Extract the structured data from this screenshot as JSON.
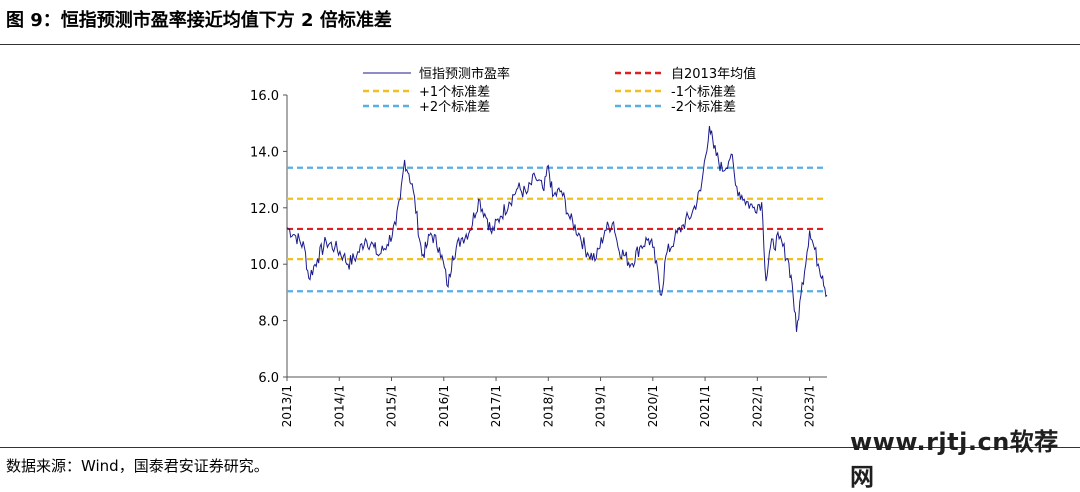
{
  "figure": {
    "title": "图 9：恒指预测市盈率接近均值下方 2 倍标准差",
    "source": "数据来源：Wind，国泰君安证券研究。",
    "watermark": "www.rjtj.cn软荐网"
  },
  "chart_data": {
    "type": "line",
    "title": "",
    "xlabel": "",
    "ylabel": "",
    "ylim": [
      6.0,
      16.0
    ],
    "yticks": [
      "6.0",
      "8.0",
      "10.0",
      "12.0",
      "14.0",
      "16.0"
    ],
    "xticks": [
      "2013/1",
      "2014/1",
      "2015/1",
      "2016/1",
      "2017/1",
      "2018/1",
      "2019/1",
      "2020/1",
      "2021/1",
      "2022/1",
      "2023/1"
    ],
    "xrange": [
      "2013/1",
      "2023/5"
    ],
    "grid": false,
    "legend_position": "top",
    "series": [
      {
        "name": "恒指预测市盈率",
        "color": "#1a1a8c",
        "style": "solid",
        "points": [
          [
            "2013/1",
            11.3
          ],
          [
            "2013/3",
            11.0
          ],
          [
            "2013/5",
            10.6
          ],
          [
            "2013/6",
            9.5
          ],
          [
            "2013/8",
            10.2
          ],
          [
            "2013/10",
            10.8
          ],
          [
            "2013/12",
            10.6
          ],
          [
            "2014/2",
            10.3
          ],
          [
            "2014/3",
            10.0
          ],
          [
            "2014/5",
            10.3
          ],
          [
            "2014/7",
            10.9
          ],
          [
            "2014/9",
            10.6
          ],
          [
            "2014/10",
            10.3
          ],
          [
            "2014/12",
            10.7
          ],
          [
            "2015/2",
            11.4
          ],
          [
            "2015/3",
            12.3
          ],
          [
            "2015/4",
            13.7
          ],
          [
            "2015/5",
            13.2
          ],
          [
            "2015/6",
            12.6
          ],
          [
            "2015/8",
            10.3
          ],
          [
            "2015/9",
            10.6
          ],
          [
            "2015/10",
            11.1
          ],
          [
            "2015/12",
            10.6
          ],
          [
            "2016/2",
            9.2
          ],
          [
            "2016/3",
            10.3
          ],
          [
            "2016/5",
            10.9
          ],
          [
            "2016/7",
            11.2
          ],
          [
            "2016/9",
            12.3
          ],
          [
            "2016/11",
            11.6
          ],
          [
            "2016/12",
            11.1
          ],
          [
            "2017/2",
            11.7
          ],
          [
            "2017/4",
            12.2
          ],
          [
            "2017/6",
            12.7
          ],
          [
            "2017/8",
            12.5
          ],
          [
            "2017/10",
            13.1
          ],
          [
            "2017/12",
            12.6
          ],
          [
            "2018/1",
            13.5
          ],
          [
            "2018/2",
            12.4
          ],
          [
            "2018/4",
            12.6
          ],
          [
            "2018/6",
            11.6
          ],
          [
            "2018/8",
            11.1
          ],
          [
            "2018/10",
            10.4
          ],
          [
            "2018/12",
            10.2
          ],
          [
            "2019/2",
            11.2
          ],
          [
            "2019/4",
            11.5
          ],
          [
            "2019/5",
            10.6
          ],
          [
            "2019/8",
            10.0
          ],
          [
            "2019/10",
            10.6
          ],
          [
            "2019/12",
            10.9
          ],
          [
            "2020/1",
            10.6
          ],
          [
            "2020/3",
            8.9
          ],
          [
            "2020/4",
            10.3
          ],
          [
            "2020/6",
            10.9
          ],
          [
            "2020/8",
            11.4
          ],
          [
            "2020/10",
            11.8
          ],
          [
            "2020/12",
            12.6
          ],
          [
            "2021/2",
            14.9
          ],
          [
            "2021/3",
            14.1
          ],
          [
            "2021/5",
            13.3
          ],
          [
            "2021/7",
            13.9
          ],
          [
            "2021/8",
            12.8
          ],
          [
            "2021/10",
            12.3
          ],
          [
            "2021/12",
            12.0
          ],
          [
            "2022/2",
            12.2
          ],
          [
            "2022/3",
            9.4
          ],
          [
            "2022/4",
            10.6
          ],
          [
            "2022/6",
            10.9
          ],
          [
            "2022/8",
            10.2
          ],
          [
            "2022/9",
            9.3
          ],
          [
            "2022/10",
            7.6
          ],
          [
            "2022/11",
            8.9
          ],
          [
            "2023/1",
            11.2
          ],
          [
            "2023/3",
            10.0
          ],
          [
            "2023/4",
            9.6
          ],
          [
            "2023/5",
            8.9
          ]
        ]
      },
      {
        "name": "自2013年均值",
        "color": "#e02020",
        "style": "dashed",
        "value": 11.25
      },
      {
        "name": "+1个标准差",
        "color": "#f0c020",
        "style": "dashed",
        "value": 12.32
      },
      {
        "name": "-1个标准差",
        "color": "#f0c020",
        "style": "dashed",
        "value": 10.18
      },
      {
        "name": "+2个标准差",
        "color": "#5aaee6",
        "style": "dashed",
        "value": 13.42
      },
      {
        "name": "-2个标准差",
        "color": "#5aaee6",
        "style": "dashed",
        "value": 9.04
      }
    ]
  }
}
